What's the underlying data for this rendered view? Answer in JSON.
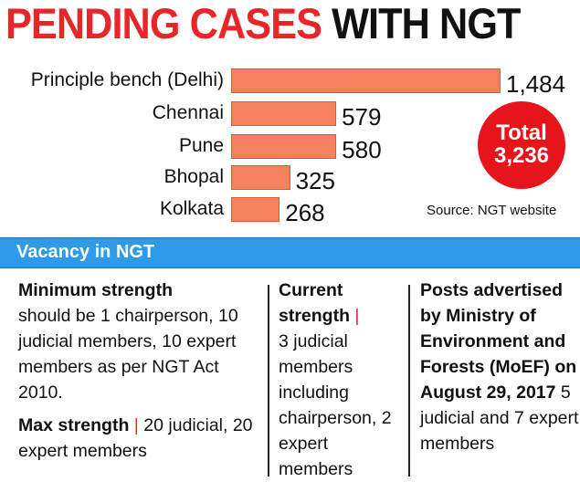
{
  "title": {
    "part1": "PENDING CASES",
    "part2": "WITH NGT"
  },
  "chart_data": {
    "type": "bar",
    "orientation": "horizontal",
    "title": "PENDING CASES WITH NGT",
    "categories": [
      "Principle bench (Delhi)",
      "Chennai",
      "Pune",
      "Bhopal",
      "Kolkata"
    ],
    "values": [
      1484,
      579,
      580,
      325,
      268
    ],
    "value_labels": [
      "1,484",
      "579",
      "580",
      "325",
      "268"
    ],
    "color": "#f58060"
  },
  "total": {
    "label": "Total",
    "value": "3,236",
    "color": "#e5151b"
  },
  "source": "Source: NGT website",
  "vacancy": {
    "heading": "Vacancy in NGT",
    "col1": {
      "h1": "Minimum strength",
      "t1": "should be 1 chairperson, 10 judicial members, 10 expert members as per NGT Act 2010.",
      "h2": "Max strength",
      "sep": "|",
      "t2": "20 judicial, 20 expert members"
    },
    "col2": {
      "h": "Current strength",
      "sep": "|",
      "t": "3 judicial members including chairperson, 2 expert members"
    },
    "col3": {
      "h": "Posts advertised by Ministry of Environment and Forests (MoEF) on August 29, 2017",
      "t": "5 judicial and 7 expert members"
    }
  }
}
